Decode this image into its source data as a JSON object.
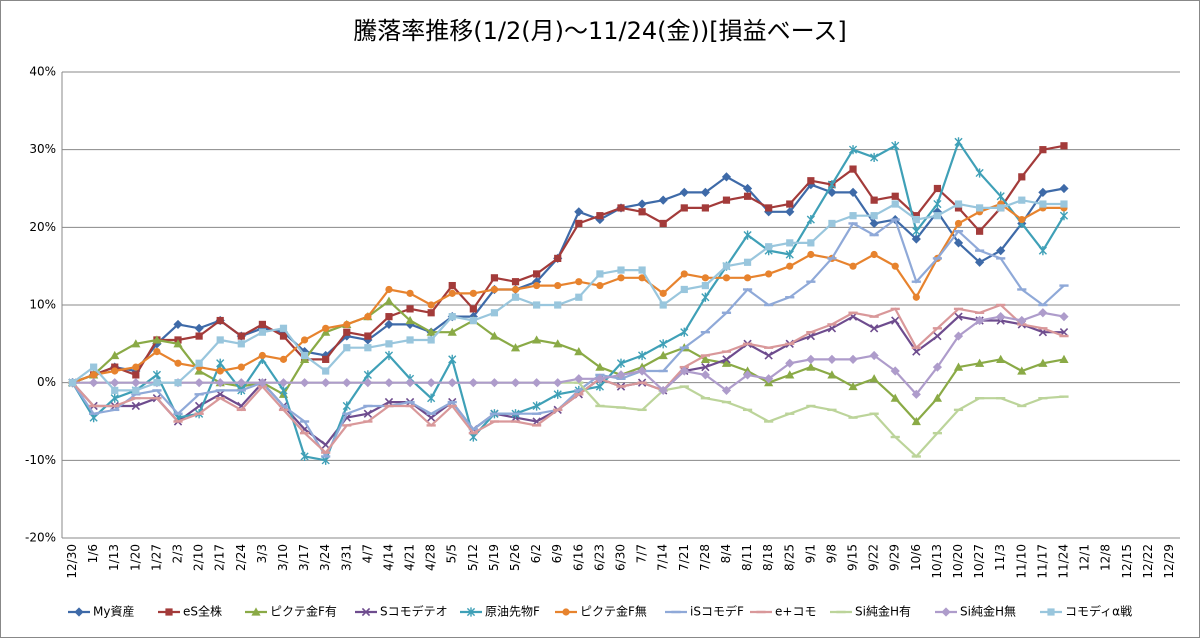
{
  "chart_data": {
    "type": "line",
    "title": "騰落率推移(1/2(月)～11/24(金))[損益ベース]",
    "categories": [
      "12/30",
      "1/6",
      "1/13",
      "1/20",
      "1/27",
      "2/3",
      "2/10",
      "2/17",
      "2/24",
      "3/3",
      "3/10",
      "3/17",
      "3/24",
      "3/31",
      "4/7",
      "4/14",
      "4/21",
      "4/28",
      "5/5",
      "5/12",
      "5/19",
      "5/26",
      "6/2",
      "6/9",
      "6/16",
      "6/23",
      "6/30",
      "7/7",
      "7/14",
      "7/21",
      "7/28",
      "8/4",
      "8/11",
      "8/18",
      "8/25",
      "9/1",
      "9/8",
      "9/15",
      "9/22",
      "9/29",
      "10/6",
      "10/13",
      "10/20",
      "10/27",
      "11/3",
      "11/10",
      "11/17",
      "11/24",
      "12/1",
      "12/8",
      "12/15",
      "12/22",
      "12/29"
    ],
    "ylim": [
      -20,
      40
    ],
    "yticks": [
      {
        "value": -20,
        "label": "-20%"
      },
      {
        "value": -10,
        "label": "-10%"
      },
      {
        "value": 0,
        "label": "0%"
      },
      {
        "value": 10,
        "label": "10%"
      },
      {
        "value": 20,
        "label": "20%"
      },
      {
        "value": 30,
        "label": "30%"
      },
      {
        "value": 40,
        "label": "40%"
      }
    ],
    "grid": true,
    "legend": "bottom",
    "series": [
      {
        "name": "My資産",
        "color": "#3e6aa8",
        "marker": "diamond",
        "values": [
          0,
          1,
          2,
          1.5,
          5,
          7.5,
          7,
          8,
          6,
          7,
          6.5,
          4,
          3.5,
          6,
          5.5,
          7.5,
          7.5,
          6.5,
          8.5,
          8.5,
          12,
          12,
          13,
          16,
          22,
          21,
          22.5,
          23,
          23.5,
          24.5,
          24.5,
          26.5,
          25,
          22,
          22,
          25.5,
          24.5,
          24.5,
          20.5,
          21,
          18.5,
          22,
          18,
          15.5,
          17,
          20.5,
          24.5,
          25,
          null,
          null,
          null,
          null,
          null
        ]
      },
      {
        "name": "eS全株",
        "color": "#a33b3a",
        "marker": "square",
        "values": [
          0,
          1,
          2,
          1,
          5.5,
          5.5,
          6,
          8,
          6,
          7.5,
          6,
          3,
          3,
          6.5,
          6,
          8.5,
          9.5,
          9,
          12.5,
          9.5,
          13.5,
          13,
          14,
          16,
          20.5,
          21.5,
          22.5,
          22,
          20.5,
          22.5,
          22.5,
          23.5,
          24,
          22.5,
          23,
          26,
          25.5,
          27.5,
          23.5,
          24,
          21.5,
          25,
          22.5,
          19.5,
          22.5,
          26.5,
          30,
          30.5,
          null,
          null,
          null,
          null,
          null
        ]
      },
      {
        "name": "ピクテ金F有",
        "color": "#8aaa46",
        "marker": "triangle",
        "values": [
          0,
          1,
          3.5,
          5,
          5.5,
          5,
          1.5,
          0,
          -0.5,
          0,
          -1.5,
          3,
          6.5,
          7.5,
          8.5,
          10.5,
          8,
          6.5,
          6.5,
          8,
          6,
          4.5,
          5.5,
          5,
          4,
          2,
          1,
          2,
          3.5,
          4.5,
          3,
          2.5,
          1.5,
          0,
          1,
          2,
          1,
          -0.5,
          0.5,
          -2,
          -5,
          -2,
          2,
          2.5,
          3,
          1.5,
          2.5,
          3,
          null,
          null,
          null,
          null,
          null
        ]
      },
      {
        "name": "Sコモデテオ",
        "color": "#6e4c8e",
        "marker": "x",
        "values": [
          0,
          -3,
          -3,
          -3,
          -2,
          -5,
          -3,
          -1.5,
          -3,
          0,
          -3,
          -6,
          -8,
          -4.5,
          -4,
          -2.5,
          -2.5,
          -4.5,
          -2.5,
          -6,
          -4,
          -4.5,
          -5,
          -3.5,
          -1.5,
          0.5,
          -0.5,
          0,
          -1,
          1.5,
          2,
          3,
          5,
          3.5,
          5,
          6,
          7,
          8.5,
          7,
          8,
          4,
          6,
          8.5,
          8,
          8,
          7.5,
          6.5,
          6.5,
          null,
          null,
          null,
          null,
          null
        ]
      },
      {
        "name": "原油先物F",
        "color": "#3fa0b7",
        "marker": "star",
        "values": [
          0,
          -4.5,
          -2,
          -1,
          1,
          -4.5,
          -4,
          2.5,
          -1,
          3,
          -1,
          -9.5,
          -10,
          -3,
          1,
          3.5,
          0.5,
          -2,
          3,
          -7,
          -4,
          -4,
          -3,
          -1.5,
          -1,
          -0.5,
          2.5,
          3.5,
          5,
          6.5,
          11,
          15,
          19,
          17,
          16.5,
          21,
          25.5,
          30,
          29,
          30.5,
          19.5,
          23,
          31,
          27,
          24,
          20.5,
          17,
          21.5,
          null,
          null,
          null,
          null,
          null
        ]
      },
      {
        "name": "ピクテ金F無",
        "color": "#e7832e",
        "marker": "circle",
        "values": [
          0,
          1,
          1.5,
          2,
          4,
          2.5,
          2,
          1.5,
          2,
          3.5,
          3,
          5.5,
          7,
          7.5,
          8.5,
          12,
          11.5,
          10,
          11.5,
          11.5,
          12,
          12,
          12.5,
          12.5,
          13,
          12.5,
          13.5,
          13.5,
          11.5,
          14,
          13.5,
          13.5,
          13.5,
          14,
          15,
          16.5,
          16,
          15,
          16.5,
          15,
          11,
          16,
          20.5,
          22,
          23,
          21,
          22.5,
          22.5,
          null,
          null,
          null,
          null,
          null
        ]
      },
      {
        "name": "iSコモデF",
        "color": "#8fa9d8",
        "marker": "dash",
        "values": [
          0,
          -4,
          -3.5,
          -1.5,
          -1,
          -4,
          -1.5,
          -1,
          -1,
          0,
          -3,
          -5,
          -9.5,
          -4,
          -3,
          -3,
          -2.5,
          -4,
          -2.5,
          -6,
          -4,
          -4,
          -4,
          -3.5,
          -1,
          1,
          0.5,
          1.5,
          1.5,
          4.5,
          6.5,
          9,
          12,
          10,
          11,
          13,
          16,
          20.5,
          19,
          21,
          13,
          16,
          19.5,
          17,
          16,
          12,
          10,
          12.5,
          null,
          null,
          null,
          null,
          null
        ]
      },
      {
        "name": "e+コモ",
        "color": "#d9989a",
        "marker": "dash",
        "values": [
          0,
          -3,
          -3,
          -2,
          -2,
          -5,
          -4,
          -2,
          -3.5,
          -0.5,
          -3.5,
          -6.5,
          -9,
          -5.5,
          -5,
          -3,
          -3,
          -5.5,
          -3,
          -6.5,
          -5,
          -5,
          -5.5,
          -3.5,
          -1.5,
          0.5,
          -0.5,
          0,
          -1,
          2,
          3.5,
          4,
          5,
          4.5,
          5,
          6.5,
          7.5,
          9,
          8.5,
          9.5,
          4.5,
          7,
          9.5,
          9,
          10,
          7.5,
          7,
          6,
          null,
          null,
          null,
          null,
          null
        ]
      },
      {
        "name": "Si純金H有",
        "color": "#bcd49a",
        "marker": "dash",
        "values": [
          0,
          0,
          0,
          0,
          0,
          0,
          0,
          0,
          0,
          0,
          0,
          0,
          0,
          0,
          0,
          0,
          0,
          0,
          0,
          0,
          0,
          0,
          0,
          0,
          0,
          -3,
          -3.2,
          -3.5,
          -1,
          -0.5,
          -2,
          -2.5,
          -3.5,
          -5,
          -4,
          -3,
          -3.5,
          -4.5,
          -4,
          -7,
          -9.5,
          -6.5,
          -3.5,
          -2,
          -2,
          -3,
          -2,
          -1.8,
          null,
          null,
          null,
          null,
          null
        ]
      },
      {
        "name": "Si純金H無",
        "color": "#ae9ccb",
        "marker": "diamond",
        "values": [
          0,
          0,
          0,
          0,
          0,
          0,
          0,
          0,
          0,
          0,
          0,
          0,
          0,
          0,
          0,
          0,
          0,
          0,
          0,
          0,
          0,
          0,
          0,
          0,
          0.5,
          0.5,
          1,
          1.5,
          -1,
          1.5,
          1,
          -1,
          1,
          0.5,
          2.5,
          3,
          3,
          3,
          3.5,
          1.5,
          -1.5,
          2,
          6,
          8,
          8.5,
          8,
          9,
          8.5,
          null,
          null,
          null,
          null,
          null
        ]
      },
      {
        "name": "コモディα戦",
        "color": "#99c6dd",
        "marker": "square",
        "values": [
          0,
          2,
          -1,
          -1,
          0,
          0,
          2.5,
          5.5,
          5,
          6.5,
          7,
          3.5,
          1.5,
          4.5,
          4.5,
          5,
          5.5,
          5.5,
          8.5,
          8,
          9,
          11,
          10,
          10,
          11,
          14,
          14.5,
          14.5,
          10,
          12,
          12.5,
          15,
          15.5,
          17.5,
          18,
          18,
          20.5,
          21.5,
          21.5,
          23,
          21,
          21.5,
          23,
          22.5,
          22.5,
          23.5,
          23,
          23,
          null,
          null,
          null,
          null,
          null
        ]
      }
    ]
  }
}
